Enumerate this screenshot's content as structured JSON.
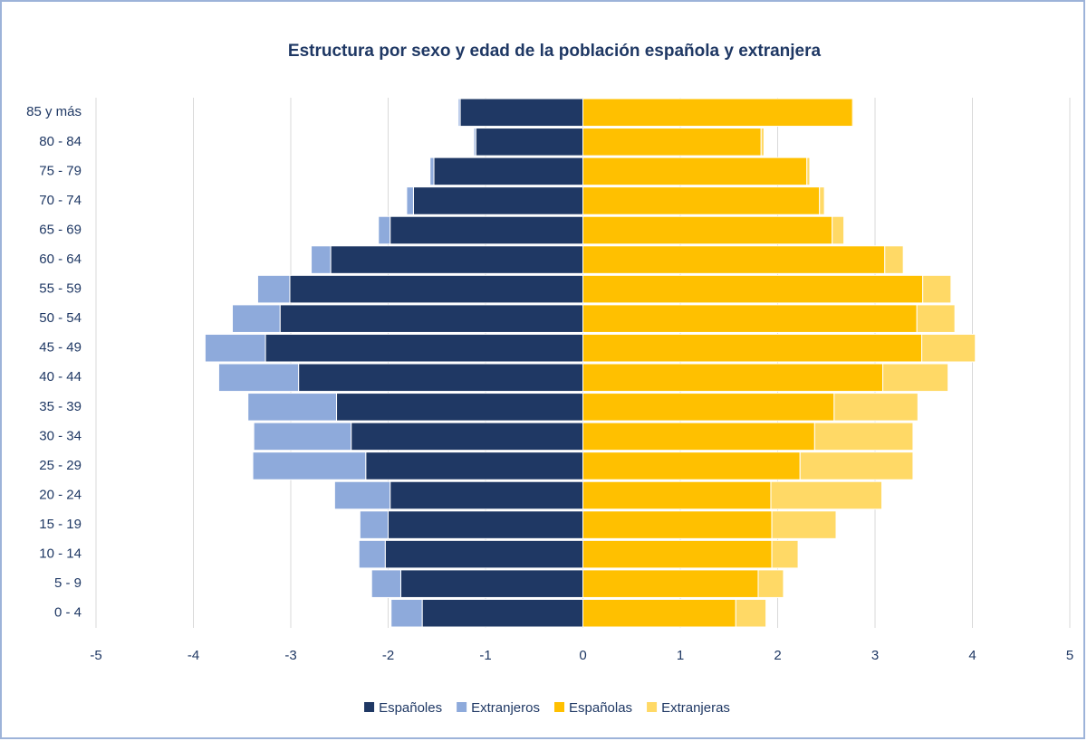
{
  "chart_data": {
    "type": "pyramid",
    "title": "Estructura por sexo y edad de la población española y extranjera",
    "categories": [
      "0 - 4",
      "5 - 9",
      "10 - 14",
      "15 - 19",
      "20 - 24",
      "25 - 29",
      "30 - 34",
      "35 - 39",
      "40 - 44",
      "45 - 49",
      "50 - 54",
      "55 - 59",
      "60 - 64",
      "65 - 69",
      "70 - 74",
      "75 - 79",
      "80 - 84",
      "85 y más"
    ],
    "series": [
      {
        "name": "Españoles",
        "color": "#1f3864",
        "values": [
          -1.65,
          -1.87,
          -2.03,
          -2.0,
          -1.98,
          -2.23,
          -2.38,
          -2.53,
          -2.92,
          -3.26,
          -3.11,
          -3.01,
          -2.59,
          -1.98,
          -1.74,
          -1.53,
          -1.1,
          -1.26
        ]
      },
      {
        "name": "Extranjeros",
        "color": "#8eaadb",
        "values": [
          -0.32,
          -0.3,
          -0.27,
          -0.29,
          -0.57,
          -1.16,
          -1.0,
          -0.91,
          -0.82,
          -0.62,
          -0.49,
          -0.33,
          -0.2,
          -0.12,
          -0.07,
          -0.04,
          -0.02,
          -0.02
        ]
      },
      {
        "name": "Españolas",
        "color": "#ffc000",
        "values": [
          1.57,
          1.8,
          1.94,
          1.94,
          1.93,
          2.23,
          2.38,
          2.58,
          3.08,
          3.48,
          3.43,
          3.49,
          3.1,
          2.56,
          2.43,
          2.3,
          1.83,
          2.77
        ]
      },
      {
        "name": "Extranjeras",
        "color": "#ffd966",
        "values": [
          0.31,
          0.26,
          0.27,
          0.66,
          1.14,
          1.16,
          1.01,
          0.86,
          0.67,
          0.55,
          0.39,
          0.29,
          0.19,
          0.12,
          0.05,
          0.03,
          0.03,
          0.01
        ]
      }
    ],
    "xlim": [
      -5,
      5
    ],
    "xticks": [
      -5,
      -4,
      -3,
      -2,
      -1,
      0,
      1,
      2,
      3,
      4,
      5
    ],
    "grid": true,
    "legend": "bottom"
  }
}
